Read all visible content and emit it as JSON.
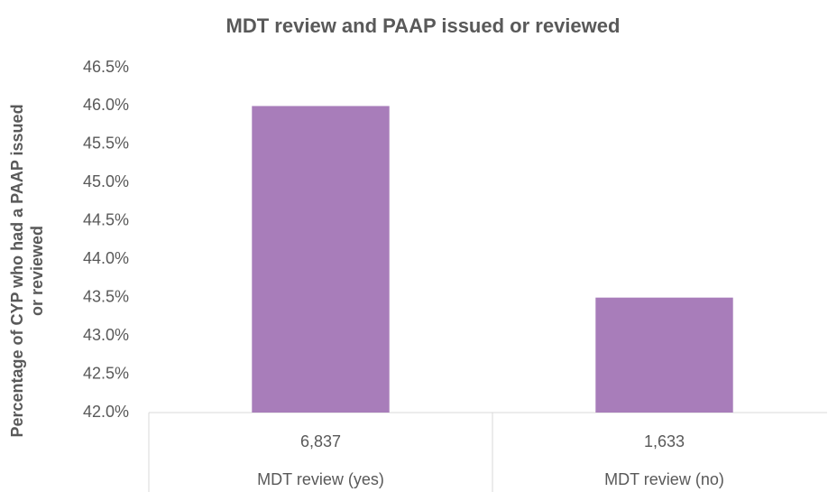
{
  "chart_data": {
    "type": "bar",
    "title": "MDT review and PAAP issued or reviewed",
    "ylabel": [
      "Percentage of CYP who had a PAAP issued",
      "or reviewed"
    ],
    "categories": [
      "MDT review (yes)",
      "MDT review (no)"
    ],
    "sublabels": [
      "6,837",
      "1,633"
    ],
    "values": [
      46.0,
      43.5
    ],
    "color": "#a87dba",
    "ylim": [
      42,
      46.5
    ],
    "yticks": [
      {
        "value": 42,
        "label": "42.0%"
      },
      {
        "value": 42.5,
        "label": "42.5%"
      },
      {
        "value": 43,
        "label": "43.0%"
      },
      {
        "value": 43.5,
        "label": "43.5%"
      },
      {
        "value": 44,
        "label": "44.0%"
      },
      {
        "value": 44.5,
        "label": "44.5%"
      },
      {
        "value": 45,
        "label": "45.0%"
      },
      {
        "value": 45.5,
        "label": "45.5%"
      },
      {
        "value": 46,
        "label": "46.0%"
      },
      {
        "value": 46.5,
        "label": "46.5%"
      }
    ],
    "grid": false
  }
}
